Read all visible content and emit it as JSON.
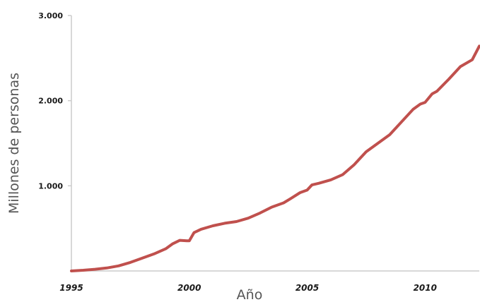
{
  "chart_data": {
    "type": "line",
    "title": "",
    "xlabel": "Año",
    "ylabel": "Millones de personas",
    "xlim": [
      1995,
      2012.3
    ],
    "ylim": [
      0,
      3000
    ],
    "xticks": [
      1995,
      2000,
      2005,
      2010
    ],
    "xtick_labels": [
      "1995",
      "2000",
      "2005",
      "2010"
    ],
    "yticks": [
      1000,
      2000,
      3000
    ],
    "ytick_labels": [
      "1.000",
      "2.000",
      "3.000"
    ],
    "grid": false,
    "legend": "none",
    "line_color": "#c0504d",
    "axis_color": "#cccccc",
    "series": [
      {
        "x": [
          1995,
          1995.5,
          1996,
          1996.5,
          1997,
          1997.5,
          1998,
          1998.5,
          1999,
          1999.3,
          1999.6,
          1999.9,
          2000.0,
          2000.2,
          2000.5,
          2001,
          2001.5,
          2002,
          2002.5,
          2003,
          2003.5,
          2004,
          2004.3,
          2004.7,
          2005,
          2005.2,
          2005.5,
          2006,
          2006.5,
          2007,
          2007.5,
          2008,
          2008.5,
          2009,
          2009.5,
          2009.8,
          2010,
          2010.3,
          2010.5,
          2011,
          2011.5,
          2012,
          2012.3
        ],
        "values": [
          0,
          8,
          20,
          35,
          60,
          100,
          150,
          200,
          260,
          320,
          360,
          355,
          355,
          450,
          490,
          530,
          560,
          580,
          620,
          680,
          750,
          800,
          850,
          920,
          950,
          1010,
          1030,
          1070,
          1130,
          1250,
          1400,
          1500,
          1600,
          1750,
          1900,
          1960,
          1980,
          2080,
          2110,
          2250,
          2400,
          2480,
          2640
        ]
      }
    ]
  }
}
